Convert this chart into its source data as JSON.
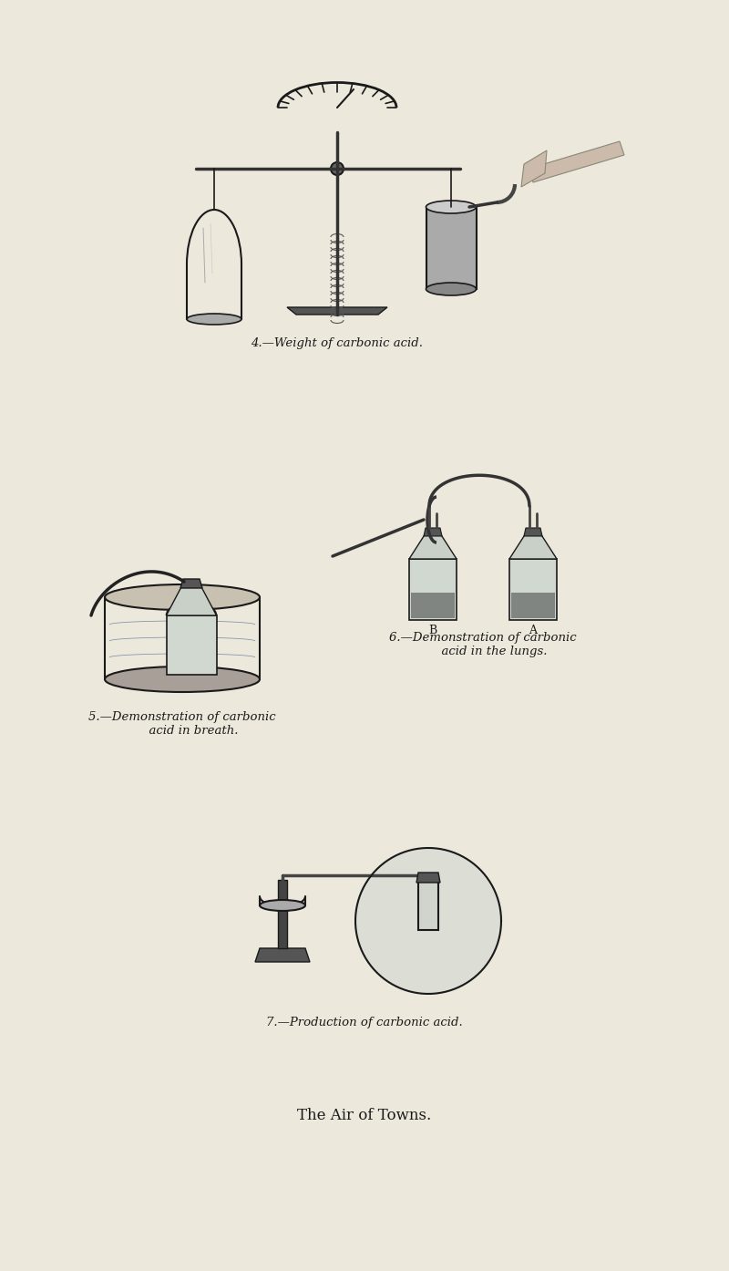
{
  "background_color": "#ede8dc",
  "page_width": 8.0,
  "page_height": 13.94,
  "dpi": 100,
  "caption1": "4.—Weight of carbonic acid.",
  "caption2": "5.—Demonstration of carbonic\n      acid in breath.",
  "caption3": "6.—Demonstration of carbonic\n      acid in the lungs.",
  "caption4": "7.—Production of carbonic acid.",
  "title": "The Air of Towns.",
  "caption_fontsize": 9.5,
  "title_fontsize": 12,
  "ink_color": "#1a1a1a",
  "light_ink": "#3a3530"
}
